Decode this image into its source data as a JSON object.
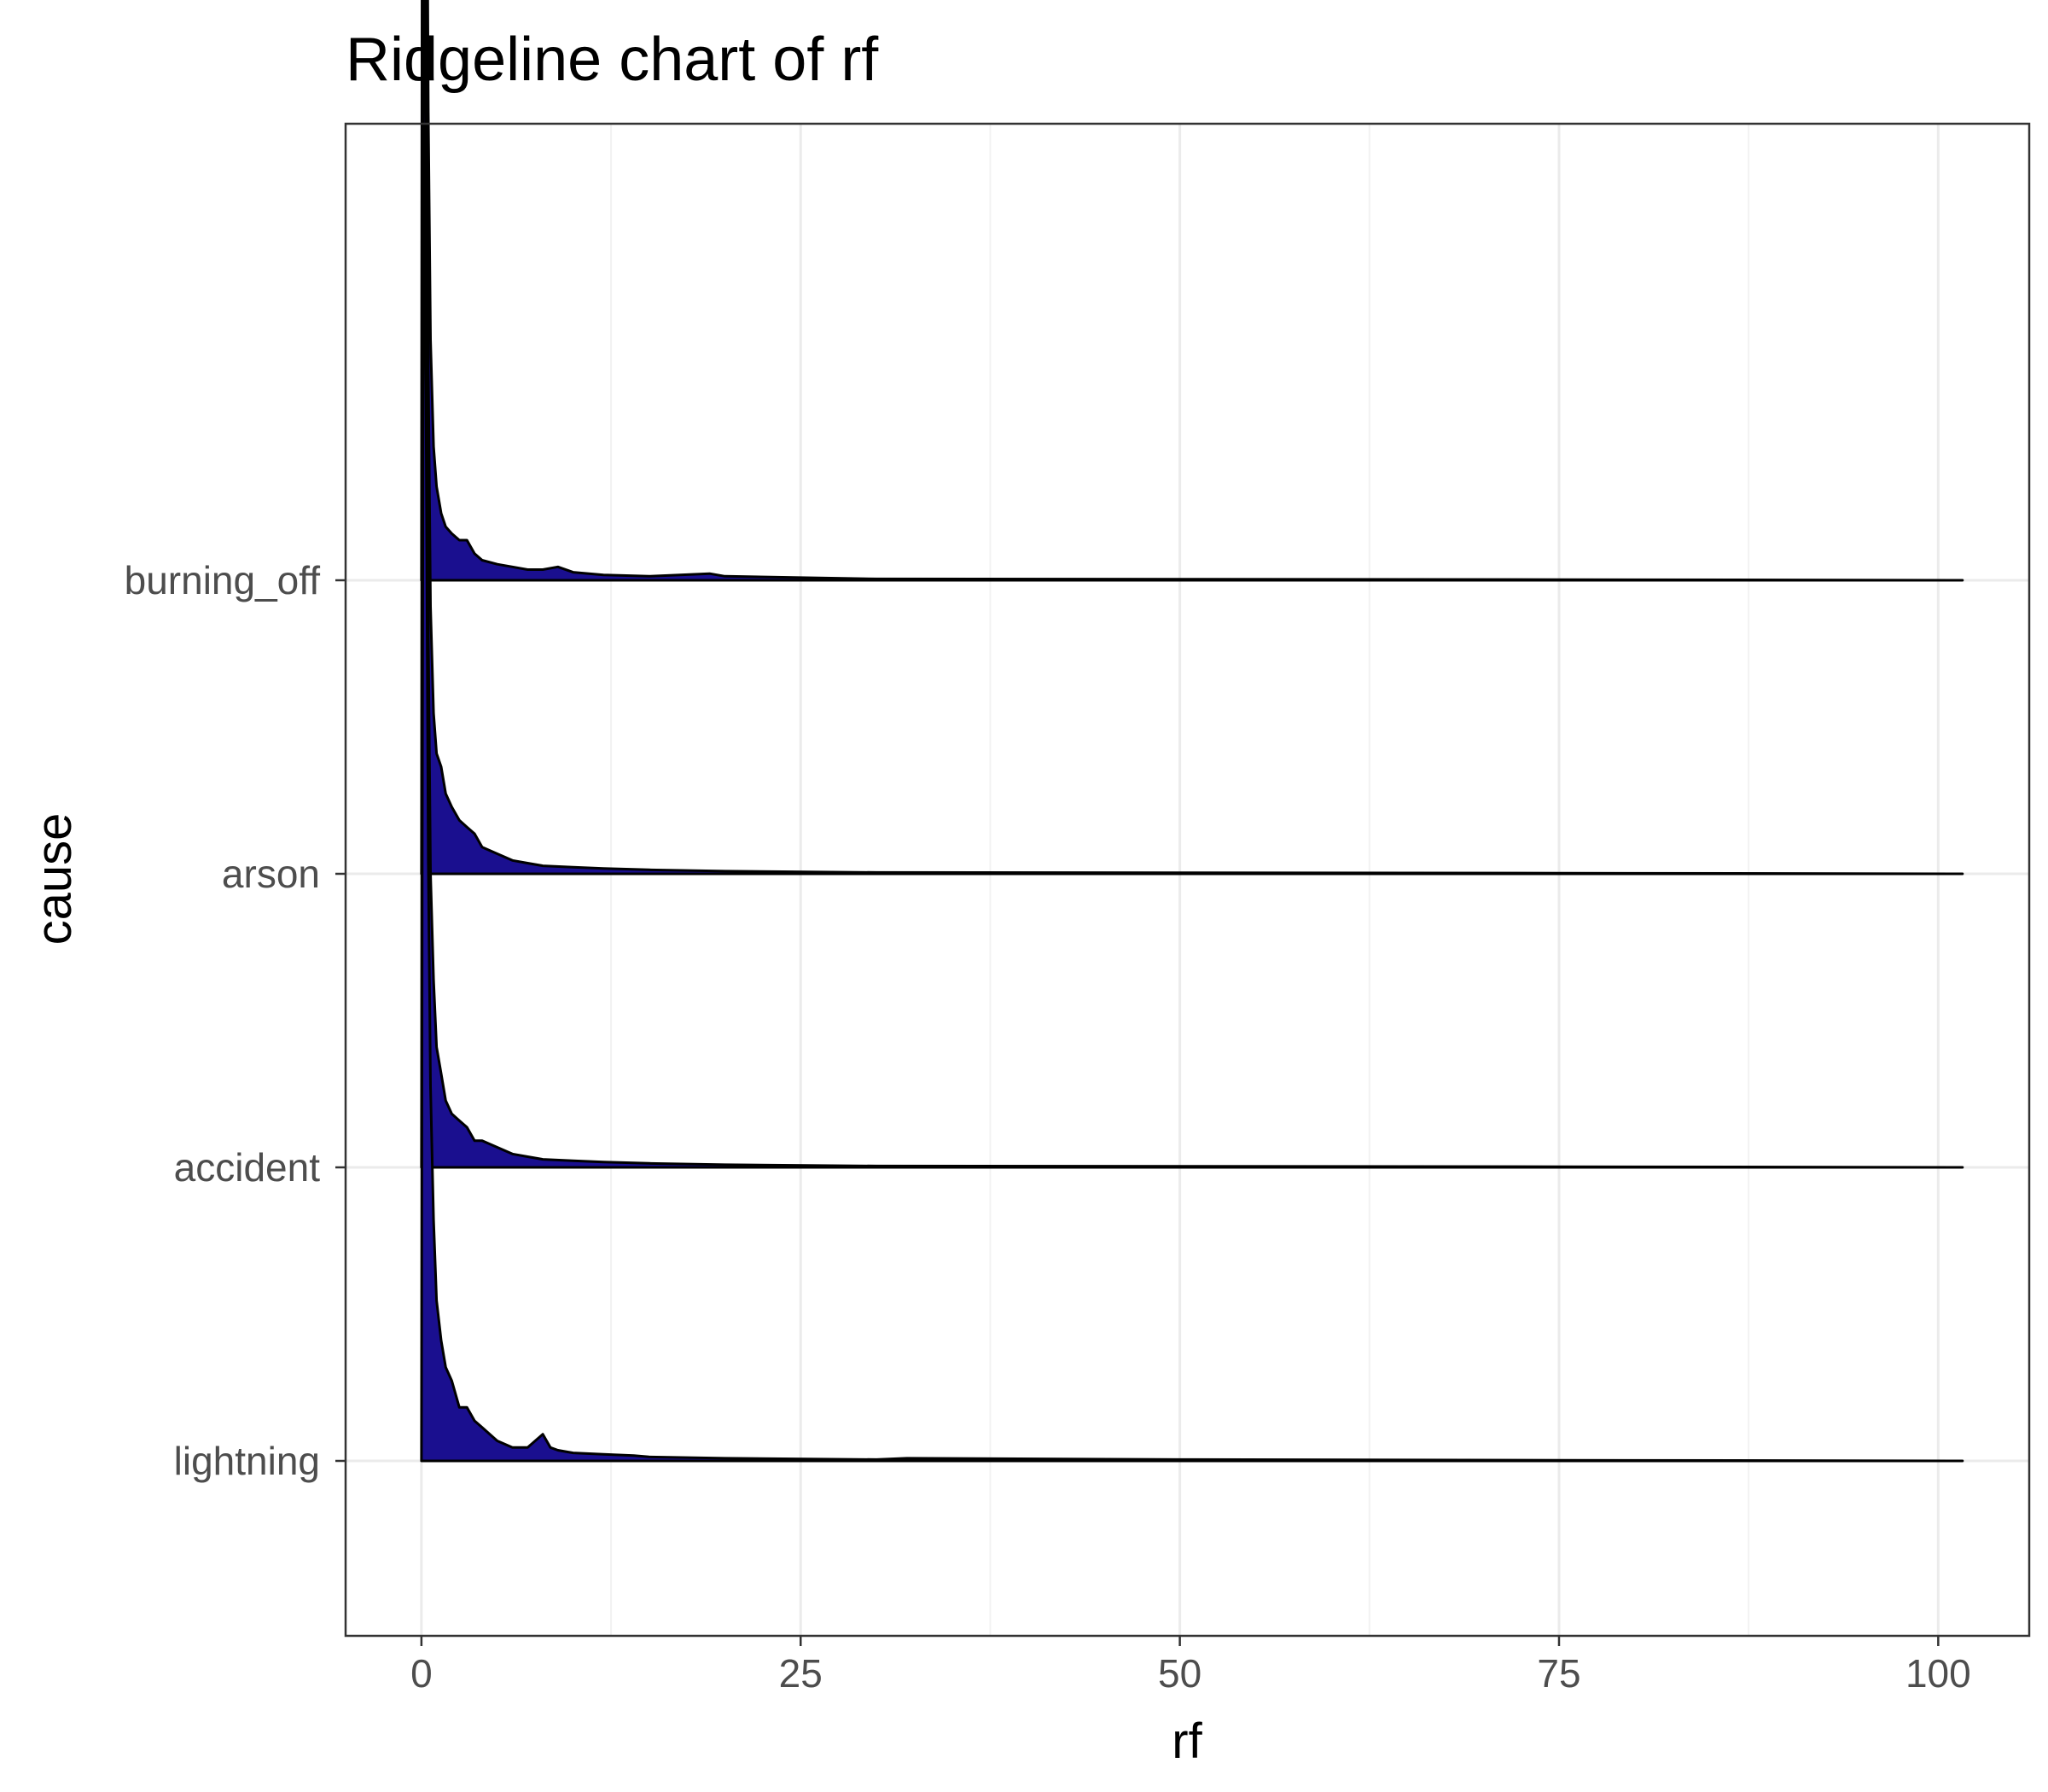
{
  "chart_data": {
    "type": "ridgeline",
    "title": "Ridgeline chart of rf",
    "xlabel": "rf",
    "ylabel": "cause",
    "x_ticks": [
      0,
      25,
      50,
      75,
      100
    ],
    "xlim": [
      -5,
      106
    ],
    "x_range_drawn": [
      0,
      101.6
    ],
    "categories": [
      "lightning",
      "accident",
      "arson",
      "burning_off"
    ],
    "grid": true,
    "legend": "none",
    "fill_color": "#1a0f8f",
    "outline_color": "#000000",
    "series": [
      {
        "category": "lightning",
        "x": [
          0,
          0.05,
          0.15,
          0.3,
          0.45,
          0.6,
          0.8,
          1.0,
          1.3,
          1.6,
          2.0,
          2.5,
          3.0,
          3.5,
          4.0,
          5.0,
          6.0,
          7.0,
          8.0,
          8.5,
          9.0,
          10.0,
          12.0,
          14.0,
          15.0,
          20.0,
          30.0,
          32.0,
          50.0,
          75.0,
          101.6
        ],
        "density": [
          0.0,
          0.45,
          1.0,
          0.8,
          0.45,
          0.28,
          0.18,
          0.12,
          0.09,
          0.07,
          0.06,
          0.04,
          0.04,
          0.03,
          0.025,
          0.015,
          0.01,
          0.01,
          0.02,
          0.01,
          0.008,
          0.006,
          0.005,
          0.004,
          0.003,
          0.002,
          0.001,
          0.002,
          0.001,
          0.0005,
          0.0
        ]
      },
      {
        "category": "accident",
        "x": [
          0,
          0.05,
          0.15,
          0.3,
          0.45,
          0.6,
          0.8,
          1.0,
          1.3,
          1.6,
          2.0,
          2.5,
          3.0,
          3.5,
          4.0,
          5.0,
          6.0,
          7.0,
          8.0,
          10.0,
          12.0,
          15.0,
          20.0,
          30.0,
          50.0,
          75.0,
          101.6
        ],
        "density": [
          0.0,
          0.5,
          1.0,
          0.75,
          0.4,
          0.22,
          0.14,
          0.09,
          0.07,
          0.05,
          0.04,
          0.035,
          0.03,
          0.02,
          0.02,
          0.015,
          0.01,
          0.008,
          0.006,
          0.005,
          0.004,
          0.003,
          0.002,
          0.001,
          0.0008,
          0.0005,
          0.0
        ]
      },
      {
        "category": "arson",
        "x": [
          0,
          0.05,
          0.15,
          0.3,
          0.45,
          0.6,
          0.8,
          1.0,
          1.3,
          1.6,
          2.0,
          2.5,
          3.0,
          3.5,
          4.0,
          5.0,
          6.0,
          7.0,
          8.0,
          10.0,
          12.0,
          15.0,
          20.0,
          30.0,
          50.0,
          75.0,
          101.6
        ],
        "density": [
          0.0,
          0.5,
          1.0,
          0.7,
          0.38,
          0.2,
          0.12,
          0.09,
          0.08,
          0.06,
          0.05,
          0.04,
          0.035,
          0.03,
          0.02,
          0.015,
          0.01,
          0.008,
          0.006,
          0.005,
          0.004,
          0.003,
          0.002,
          0.001,
          0.0008,
          0.0005,
          0.0
        ]
      },
      {
        "category": "burning_off",
        "x": [
          0,
          0.05,
          0.15,
          0.3,
          0.45,
          0.6,
          0.8,
          1.0,
          1.3,
          1.6,
          2.0,
          2.5,
          3.0,
          3.5,
          4.0,
          5.0,
          6.0,
          7.0,
          8.0,
          9.0,
          10.0,
          12.0,
          15.0,
          19.0,
          20.0,
          25.0,
          30.0,
          50.0,
          75.0,
          101.6
        ],
        "density": [
          0.0,
          0.6,
          1.0,
          0.7,
          0.35,
          0.18,
          0.1,
          0.07,
          0.05,
          0.04,
          0.035,
          0.03,
          0.03,
          0.02,
          0.015,
          0.012,
          0.01,
          0.008,
          0.008,
          0.01,
          0.006,
          0.004,
          0.003,
          0.005,
          0.003,
          0.002,
          0.001,
          0.0008,
          0.0005,
          0.0
        ]
      }
    ]
  }
}
